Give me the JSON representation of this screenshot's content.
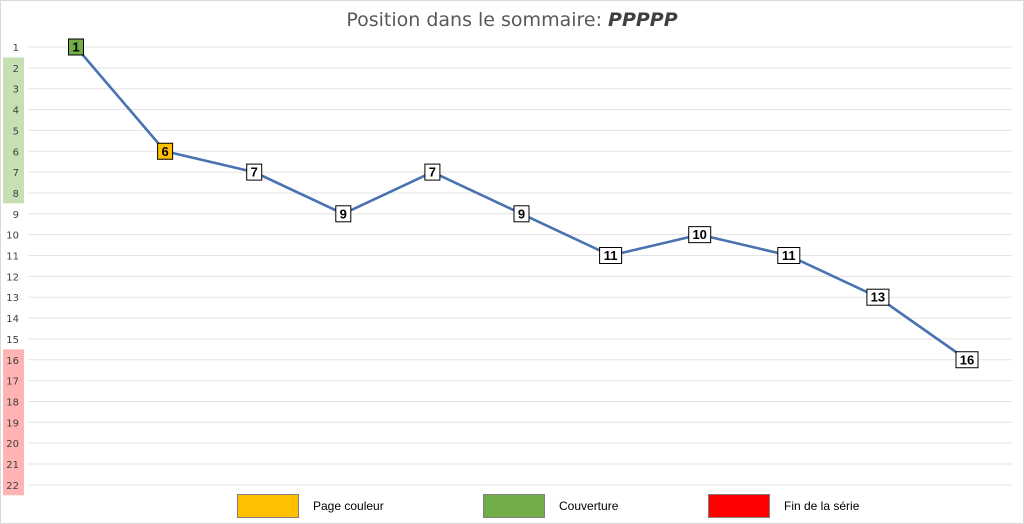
{
  "chart_data": {
    "type": "line",
    "title": "Position dans le sommaire: ",
    "title_suffix": "PPPPP",
    "x": [
      1,
      2,
      3,
      4,
      5,
      6,
      7,
      8,
      9,
      10,
      11
    ],
    "y_ticks": [
      1,
      2,
      3,
      4,
      5,
      6,
      7,
      8,
      9,
      10,
      11,
      12,
      13,
      14,
      15,
      16,
      17,
      18,
      19,
      20,
      21,
      22
    ],
    "ylim": [
      1,
      22
    ],
    "y_reversed": true,
    "grid": true,
    "series": [
      {
        "values": [
          1,
          6,
          7,
          9,
          7,
          9,
          11,
          10,
          11,
          13,
          16
        ],
        "labels": [
          "1",
          "6",
          "7",
          "9",
          "7",
          "9",
          "11",
          "10",
          "11",
          "13",
          "16"
        ],
        "point_categories": [
          "cover",
          "color",
          "normal",
          "normal",
          "normal",
          "normal",
          "normal",
          "normal",
          "normal",
          "normal",
          "normal"
        ],
        "color": "#4a72b0"
      }
    ],
    "y_bands": [
      {
        "from": 2,
        "to": 8,
        "color": "#c6e0b4"
      },
      {
        "from": 16,
        "to": 22,
        "color": "#ffb3b3"
      }
    ],
    "legend": {
      "placement": "bottom",
      "items": [
        {
          "label": "Page couleur",
          "color": "#ffc000"
        },
        {
          "label": "Couverture",
          "color": "#70ad47"
        },
        {
          "label": "Fin de la série",
          "color": "#ff0000"
        }
      ]
    },
    "category_colors": {
      "cover": "#70ad47",
      "color": "#ffc000",
      "normal": "#ffffff"
    }
  }
}
